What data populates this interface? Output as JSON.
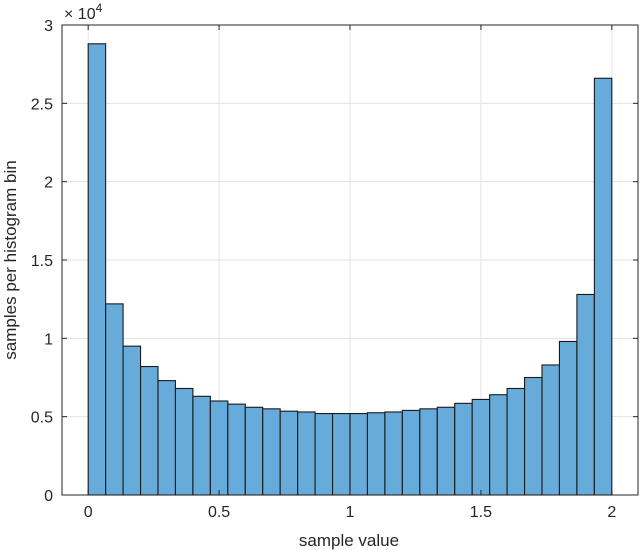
{
  "chart_data": {
    "type": "bar",
    "subtype": "histogram",
    "title": "",
    "xlabel": "sample value",
    "ylabel": "samples per histogram bin",
    "y_exponent_label": "× 10",
    "y_exponent_power": "4",
    "y_multiplier": 10000,
    "xlim": [
      -0.1,
      2.1
    ],
    "ylim": [
      0,
      3
    ],
    "x_ticks": [
      0,
      0.5,
      1,
      1.5,
      2
    ],
    "x_tick_labels": [
      "0",
      "0.5",
      "1",
      "1.5",
      "2"
    ],
    "y_ticks": [
      0,
      0.5,
      1,
      1.5,
      2,
      2.5,
      3
    ],
    "y_tick_labels": [
      "0",
      "0.5",
      "1",
      "1.5",
      "2",
      "2.5",
      "3"
    ],
    "grid": true,
    "bin_edges_start": 0,
    "bin_width": 0.0666667,
    "num_bins": 30,
    "values": [
      2.88,
      1.22,
      0.95,
      0.82,
      0.73,
      0.68,
      0.63,
      0.6,
      0.58,
      0.56,
      0.55,
      0.535,
      0.53,
      0.52,
      0.52,
      0.52,
      0.525,
      0.53,
      0.54,
      0.55,
      0.56,
      0.585,
      0.61,
      0.64,
      0.68,
      0.75,
      0.83,
      0.98,
      1.28,
      2.66
    ],
    "bar_color": "#5fa6d8",
    "edge_color": "#1a1a1a"
  }
}
